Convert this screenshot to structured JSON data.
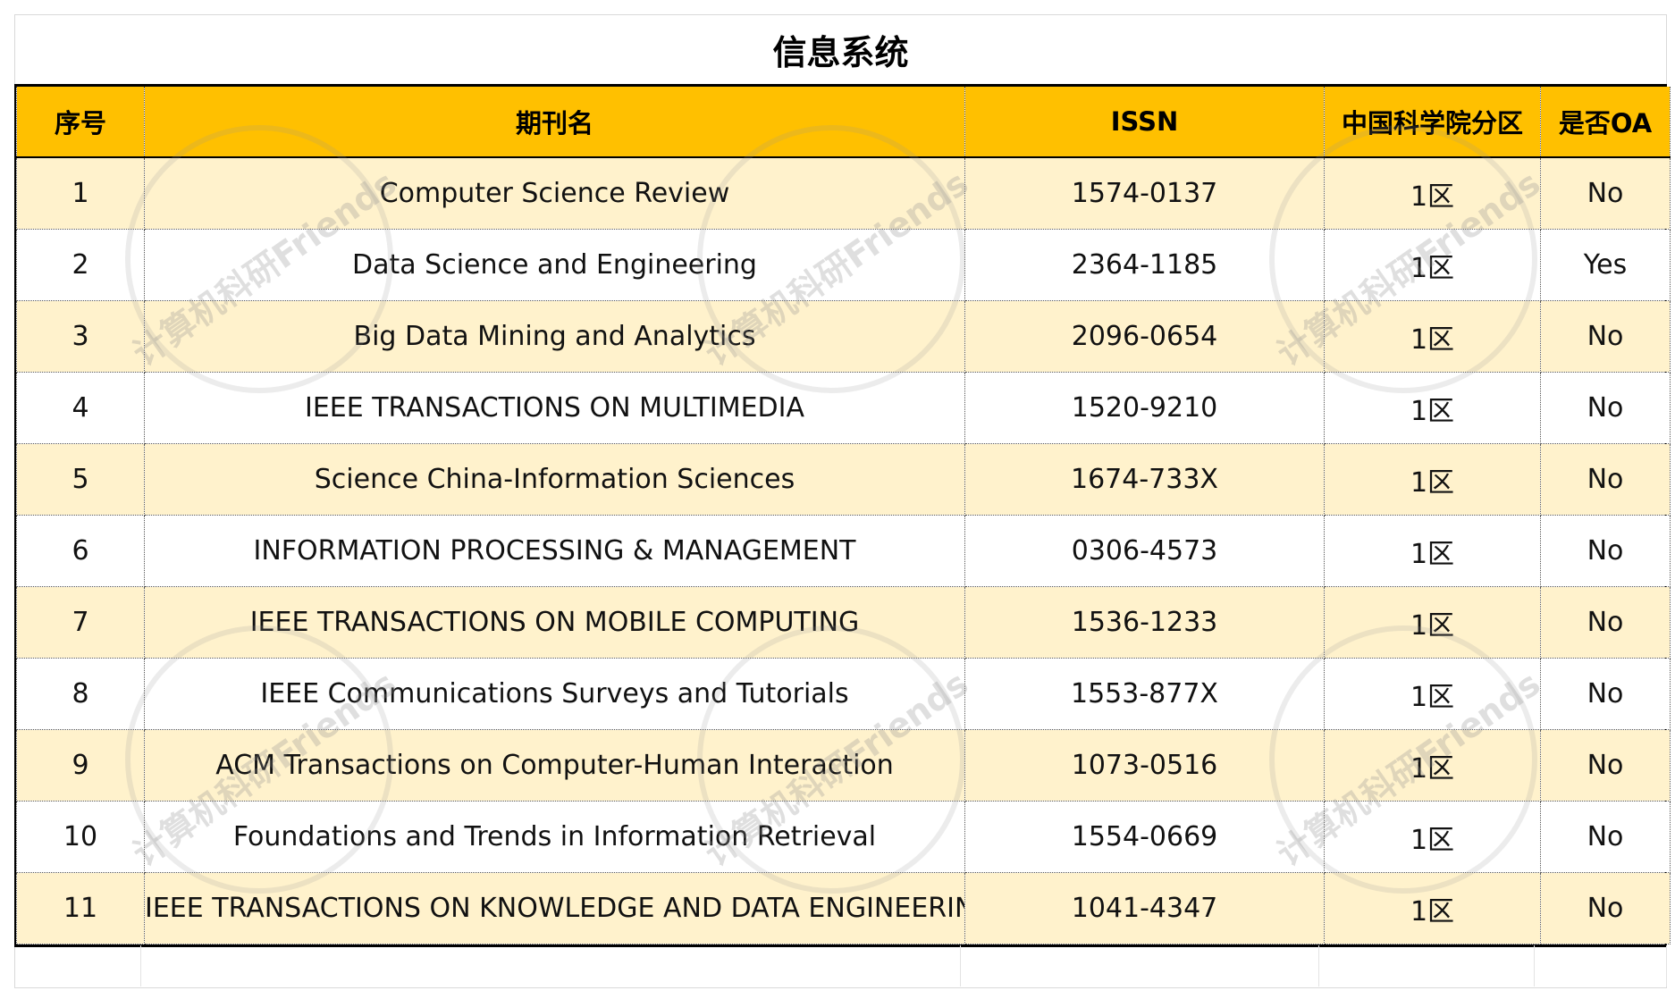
{
  "title": "信息系统",
  "columns": [
    "序号",
    "期刊名",
    "ISSN",
    "中国科学院分区",
    "是否OA"
  ],
  "rows": [
    {
      "no": "1",
      "name": "Computer Science Review",
      "issn": "1574-0137",
      "zone": "1区",
      "oa": "No"
    },
    {
      "no": "2",
      "name": "Data Science and Engineering",
      "issn": "2364-1185",
      "zone": "1区",
      "oa": "Yes"
    },
    {
      "no": "3",
      "name": "Big Data Mining and Analytics",
      "issn": "2096-0654",
      "zone": "1区",
      "oa": "No"
    },
    {
      "no": "4",
      "name": "IEEE TRANSACTIONS ON MULTIMEDIA",
      "issn": "1520-9210",
      "zone": "1区",
      "oa": "No"
    },
    {
      "no": "5",
      "name": "Science China-Information Sciences",
      "issn": "1674-733X",
      "zone": "1区",
      "oa": "No"
    },
    {
      "no": "6",
      "name": "INFORMATION PROCESSING & MANAGEMENT",
      "issn": "0306-4573",
      "zone": "1区",
      "oa": "No"
    },
    {
      "no": "7",
      "name": "IEEE TRANSACTIONS ON MOBILE COMPUTING",
      "issn": "1536-1233",
      "zone": "1区",
      "oa": "No"
    },
    {
      "no": "8",
      "name": "IEEE Communications Surveys and Tutorials",
      "issn": "1553-877X",
      "zone": "1区",
      "oa": "No"
    },
    {
      "no": "9",
      "name": "ACM Transactions on Computer-Human Interaction",
      "issn": "1073-0516",
      "zone": "1区",
      "oa": "No"
    },
    {
      "no": "10",
      "name": "Foundations and Trends in Information Retrieval",
      "issn": "1554-0669",
      "zone": "1区",
      "oa": "No"
    },
    {
      "no": "11",
      "name": "IEEE TRANSACTIONS ON KNOWLEDGE AND DATA ENGINEERING",
      "issn": "1041-4347",
      "zone": "1区",
      "oa": "No"
    }
  ],
  "watermark": "计算机科研Friends",
  "colors": {
    "header": "#ffc000",
    "odd_row": "#fff2cc",
    "even_row": "#ffffff"
  }
}
